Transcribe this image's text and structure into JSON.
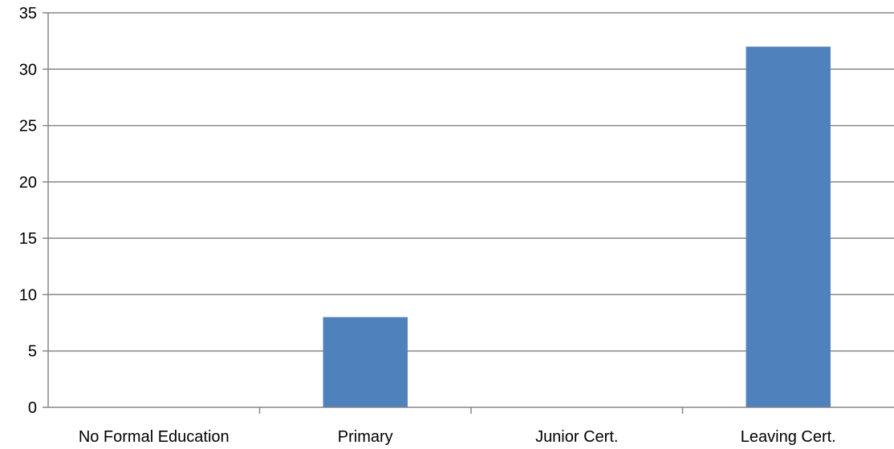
{
  "chart_data": {
    "type": "bar",
    "title": "",
    "xlabel": "",
    "ylabel": "",
    "categories": [
      "No Formal Education",
      "Primary",
      "Junior Cert.",
      "Leaving Cert."
    ],
    "values": [
      0,
      8,
      0,
      32
    ],
    "ylim": [
      0,
      35
    ],
    "yticks": [
      "0",
      "5",
      "10",
      "15",
      "20",
      "25",
      "30",
      "35"
    ],
    "grid": true,
    "legend": "none",
    "bar_color": "#4F81BD",
    "grid_color": "#868686",
    "axis_color": "#868686"
  }
}
